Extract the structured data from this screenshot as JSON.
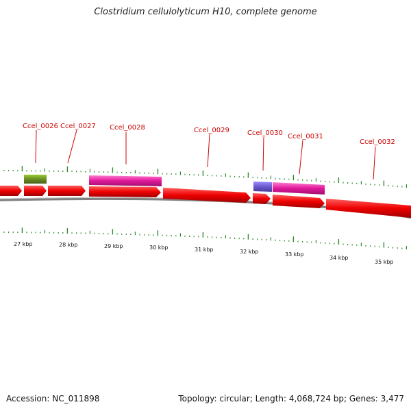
{
  "title": "Clostridium cellulolyticum H10, complete genome",
  "footer": {
    "accession": "Accession: NC_011898",
    "summary": "Topology: circular; Length: 4,068,724 bp; Genes: 3,477"
  },
  "scale_labels": [
    "27 kbp",
    "28 kbp",
    "29 kbp",
    "30 kbp",
    "31 kbp",
    "32 kbp",
    "33 kbp",
    "34 kbp",
    "35 kbp"
  ],
  "gene_labels": [
    "Ccel_0026",
    "Ccel_0027",
    "Ccel_0028",
    "Ccel_0029",
    "Ccel_0030",
    "Ccel_0031",
    "Ccel_0032"
  ],
  "colors": {
    "cds": "#ee0000",
    "cds_dark": "#b00000",
    "backbone": "#808080",
    "tick": "#2e8b2e",
    "label": "#cc0000",
    "olive": "#6b8e23",
    "magenta": "#e0179b",
    "purple": "#6a5acd"
  }
}
